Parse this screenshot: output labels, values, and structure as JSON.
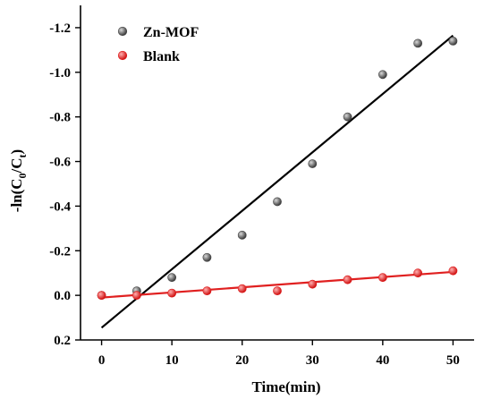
{
  "chart_data": {
    "type": "scatter",
    "xlabel": "Time(min)",
    "ylabel_main": "-ln(C",
    "ylabel_sub1": "0",
    "ylabel_mid": "/C",
    "ylabel_sub2": "t",
    "ylabel_end": ")",
    "xlim": [
      -3,
      53
    ],
    "ylim": [
      0.2,
      -1.3
    ],
    "y_inverted": true,
    "x_ticks": [
      0,
      10,
      20,
      30,
      40,
      50
    ],
    "x_tick_labels": [
      "0",
      "10",
      "20",
      "30",
      "40",
      "50"
    ],
    "y_ticks": [
      0.2,
      0.0,
      -0.2,
      -0.4,
      -0.6,
      -0.8,
      -1.0,
      -1.2
    ],
    "y_tick_labels": [
      "0.2",
      "0.0",
      "-0.2",
      "-0.4",
      "-0.6",
      "-0.8",
      "-1.0",
      "-1.2"
    ],
    "legend_position": "top-left",
    "grid": false,
    "series": [
      {
        "name": "Zn-MOF",
        "color": "#4a4a4a",
        "x": [
          0,
          5,
          10,
          15,
          20,
          25,
          30,
          35,
          40,
          45,
          50
        ],
        "y": [
          0.0,
          -0.02,
          -0.08,
          -0.17,
          -0.27,
          -0.42,
          -0.59,
          -0.8,
          -0.99,
          -1.13,
          -1.14
        ],
        "fit": {
          "x": [
            0,
            50
          ],
          "y": [
            0.145,
            -1.165
          ],
          "color": "#000000"
        }
      },
      {
        "name": "Blank",
        "color": "#e02020",
        "x": [
          0,
          5,
          10,
          15,
          20,
          25,
          30,
          35,
          40,
          45,
          50
        ],
        "y": [
          0.0,
          0.0,
          -0.01,
          -0.02,
          -0.03,
          -0.02,
          -0.05,
          -0.07,
          -0.08,
          -0.1,
          -0.11
        ],
        "fit": {
          "x": [
            0,
            50
          ],
          "y": [
            0.01,
            -0.105
          ],
          "color": "#e02020"
        }
      }
    ]
  }
}
